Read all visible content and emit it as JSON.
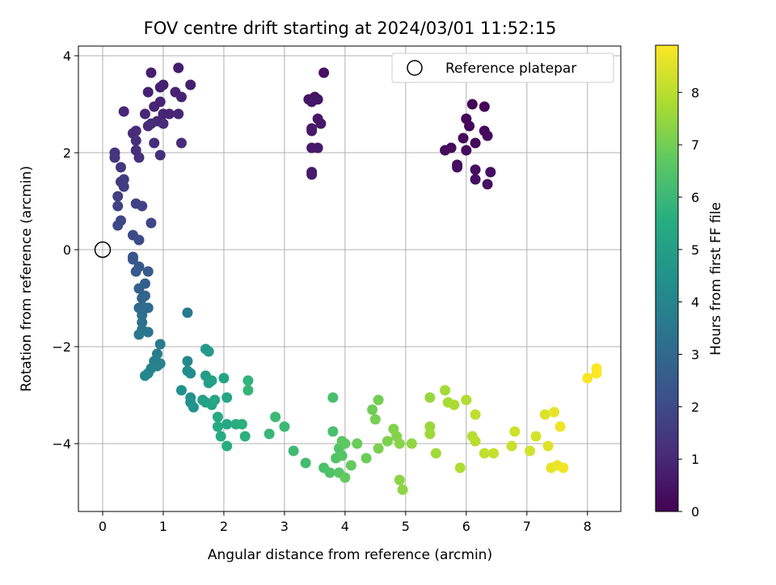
{
  "chart_data": {
    "type": "scatter",
    "title": "FOV centre drift starting at 2024/03/01 11:52:15",
    "xlabel": "Angular distance from reference (arcmin)",
    "ylabel": "Rotation from reference (arcmin)",
    "xlim": [
      -0.4,
      8.55
    ],
    "ylim": [
      -5.4,
      4.2
    ],
    "grid": true,
    "legend": {
      "placement": "upper-right",
      "entries": [
        "Reference platepar"
      ]
    },
    "colorbar": {
      "label": "Hours from first FF file",
      "range": [
        0,
        8.9
      ],
      "ticks": [
        0,
        1,
        2,
        3,
        4,
        5,
        6,
        7,
        8
      ],
      "colormap": "viridis"
    },
    "x_ticks": [
      0,
      1,
      2,
      3,
      4,
      5,
      6,
      7,
      8
    ],
    "y_ticks": [
      -4,
      -2,
      0,
      2,
      4
    ],
    "y_tick_labels": [
      "−4",
      "−2",
      "0",
      "2",
      "4"
    ],
    "reference": {
      "x": 0,
      "y": 0,
      "marker": "open-circle"
    },
    "points": [
      [
        6.1,
        3.0,
        0.1
      ],
      [
        6.3,
        2.95,
        0.12
      ],
      [
        6.0,
        2.7,
        0.14
      ],
      [
        6.05,
        2.55,
        0.16
      ],
      [
        6.3,
        2.45,
        0.18
      ],
      [
        6.35,
        2.35,
        0.2
      ],
      [
        5.95,
        2.3,
        0.22
      ],
      [
        6.15,
        2.2,
        0.24
      ],
      [
        5.75,
        2.1,
        0.26
      ],
      [
        5.65,
        2.05,
        0.28
      ],
      [
        6.0,
        2.05,
        0.3
      ],
      [
        5.85,
        1.75,
        0.32
      ],
      [
        5.85,
        1.7,
        0.34
      ],
      [
        6.15,
        1.65,
        0.36
      ],
      [
        6.4,
        1.6,
        0.38
      ],
      [
        6.15,
        1.45,
        0.4
      ],
      [
        6.35,
        1.35,
        0.42
      ],
      [
        3.65,
        3.65,
        0.45
      ],
      [
        3.5,
        3.15,
        0.47
      ],
      [
        3.4,
        3.1,
        0.49
      ],
      [
        3.55,
        3.1,
        0.51
      ],
      [
        3.45,
        3.05,
        0.53
      ],
      [
        3.55,
        2.7,
        0.55
      ],
      [
        3.6,
        2.6,
        0.57
      ],
      [
        3.45,
        2.5,
        0.59
      ],
      [
        3.45,
        2.45,
        0.61
      ],
      [
        3.45,
        2.1,
        0.63
      ],
      [
        3.55,
        2.1,
        0.65
      ],
      [
        3.45,
        1.6,
        0.67
      ],
      [
        3.45,
        1.55,
        0.69
      ],
      [
        1.25,
        3.75,
        0.72
      ],
      [
        0.8,
        3.65,
        0.75
      ],
      [
        1.45,
        3.4,
        0.78
      ],
      [
        1.0,
        3.4,
        0.8
      ],
      [
        0.95,
        3.35,
        0.82
      ],
      [
        0.75,
        3.25,
        0.84
      ],
      [
        1.2,
        3.25,
        0.86
      ],
      [
        1.3,
        3.15,
        0.88
      ],
      [
        0.95,
        3.05,
        0.9
      ],
      [
        0.85,
        2.95,
        0.92
      ],
      [
        1.0,
        2.8,
        0.94
      ],
      [
        1.1,
        2.8,
        0.96
      ],
      [
        1.25,
        2.8,
        0.98
      ],
      [
        0.7,
        2.8,
        1.0
      ],
      [
        0.35,
        2.85,
        1.02
      ],
      [
        0.9,
        2.65,
        1.04
      ],
      [
        0.8,
        2.6,
        1.06
      ],
      [
        1.0,
        2.6,
        1.08
      ],
      [
        0.75,
        2.55,
        1.1
      ],
      [
        0.5,
        2.4,
        1.12
      ],
      [
        0.55,
        2.45,
        1.14
      ],
      [
        0.85,
        2.2,
        1.16
      ],
      [
        1.3,
        2.2,
        1.18
      ],
      [
        0.55,
        2.25,
        1.2
      ],
      [
        0.55,
        2.05,
        1.22
      ],
      [
        0.95,
        1.95,
        1.24
      ],
      [
        0.6,
        1.9,
        1.26
      ],
      [
        0.2,
        2.0,
        1.35
      ],
      [
        0.2,
        1.9,
        1.4
      ],
      [
        0.3,
        1.7,
        1.45
      ],
      [
        0.35,
        1.45,
        1.5
      ],
      [
        0.3,
        1.4,
        1.55
      ],
      [
        0.35,
        1.3,
        1.6
      ],
      [
        0.25,
        1.1,
        1.65
      ],
      [
        0.55,
        0.95,
        1.7
      ],
      [
        0.25,
        0.9,
        1.75
      ],
      [
        0.65,
        0.9,
        1.8
      ],
      [
        0.3,
        0.6,
        1.85
      ],
      [
        0.8,
        0.55,
        1.9
      ],
      [
        0.25,
        0.5,
        1.95
      ],
      [
        0.5,
        0.3,
        2.0
      ],
      [
        0.6,
        0.2,
        2.05
      ],
      [
        0.5,
        -0.15,
        2.3
      ],
      [
        0.5,
        -0.2,
        2.35
      ],
      [
        0.6,
        -0.35,
        2.45
      ],
      [
        0.55,
        -0.45,
        2.5
      ],
      [
        0.75,
        -0.45,
        2.55
      ],
      [
        0.7,
        -0.7,
        2.65
      ],
      [
        0.6,
        -0.8,
        2.75
      ],
      [
        0.7,
        -0.95,
        2.85
      ],
      [
        0.65,
        -1.0,
        2.9
      ],
      [
        0.6,
        -1.2,
        3.0
      ],
      [
        0.7,
        -1.2,
        3.05
      ],
      [
        0.75,
        -1.2,
        3.1
      ],
      [
        0.65,
        -1.35,
        3.2
      ],
      [
        0.65,
        -1.5,
        3.3
      ],
      [
        0.65,
        -1.65,
        3.4
      ],
      [
        0.75,
        -1.7,
        3.45
      ],
      [
        0.6,
        -1.75,
        3.5
      ],
      [
        1.4,
        -1.3,
        3.6
      ],
      [
        0.95,
        -1.95,
        3.7
      ],
      [
        0.9,
        -2.15,
        3.75
      ],
      [
        0.85,
        -2.3,
        3.8
      ],
      [
        0.95,
        -2.35,
        3.85
      ],
      [
        0.9,
        -2.4,
        3.9
      ],
      [
        0.8,
        -2.45,
        3.95
      ],
      [
        0.75,
        -2.55,
        4.0
      ],
      [
        0.7,
        -2.6,
        4.05
      ],
      [
        1.4,
        -2.3,
        4.15
      ],
      [
        1.4,
        -2.5,
        4.25
      ],
      [
        1.45,
        -2.55,
        4.3
      ],
      [
        1.3,
        -2.9,
        4.4
      ],
      [
        1.45,
        -3.05,
        4.45
      ],
      [
        1.45,
        -3.15,
        4.5
      ],
      [
        1.5,
        -3.25,
        4.55
      ],
      [
        1.7,
        -2.05,
        4.8
      ],
      [
        1.75,
        -2.1,
        4.85
      ],
      [
        1.7,
        -2.6,
        4.9
      ],
      [
        1.75,
        -2.75,
        4.95
      ],
      [
        1.8,
        -2.7,
        5.0
      ],
      [
        1.65,
        -3.1,
        5.05
      ],
      [
        1.7,
        -3.15,
        5.1
      ],
      [
        1.8,
        -3.2,
        5.15
      ],
      [
        2.0,
        -2.65,
        5.2
      ],
      [
        2.05,
        -3.05,
        5.25
      ],
      [
        1.85,
        -3.1,
        5.3
      ],
      [
        1.9,
        -3.45,
        5.35
      ],
      [
        2.05,
        -3.6,
        5.4
      ],
      [
        1.9,
        -3.65,
        5.45
      ],
      [
        1.95,
        -3.85,
        5.5
      ],
      [
        2.05,
        -4.05,
        5.55
      ],
      [
        2.2,
        -3.6,
        5.6
      ],
      [
        2.3,
        -3.6,
        5.65
      ],
      [
        2.35,
        -3.85,
        5.7
      ],
      [
        2.4,
        -2.7,
        5.8
      ],
      [
        2.4,
        -2.9,
        5.85
      ],
      [
        2.75,
        -3.8,
        5.95
      ],
      [
        2.85,
        -3.45,
        6.0
      ],
      [
        3.0,
        -3.65,
        6.05
      ],
      [
        3.15,
        -4.15,
        6.1
      ],
      [
        3.35,
        -4.4,
        6.15
      ],
      [
        3.8,
        -3.05,
        6.25
      ],
      [
        3.8,
        -3.75,
        6.3
      ],
      [
        3.65,
        -4.5,
        6.35
      ],
      [
        3.75,
        -4.6,
        6.4
      ],
      [
        3.85,
        -4.3,
        6.45
      ],
      [
        3.9,
        -4.1,
        6.5
      ],
      [
        3.95,
        -4.25,
        6.55
      ],
      [
        3.9,
        -4.6,
        6.6
      ],
      [
        3.95,
        -3.95,
        6.65
      ],
      [
        4.0,
        -4.0,
        6.7
      ],
      [
        4.0,
        -4.7,
        6.75
      ],
      [
        4.1,
        -4.45,
        6.8
      ],
      [
        4.2,
        -4.0,
        6.85
      ],
      [
        4.35,
        -4.3,
        6.9
      ],
      [
        4.45,
        -3.3,
        6.95
      ],
      [
        4.55,
        -3.1,
        7.0
      ],
      [
        4.5,
        -3.5,
        7.05
      ],
      [
        4.55,
        -4.1,
        7.1
      ],
      [
        4.7,
        -3.95,
        7.15
      ],
      [
        4.8,
        -3.7,
        7.2
      ],
      [
        4.85,
        -3.85,
        7.25
      ],
      [
        4.9,
        -4.0,
        7.3
      ],
      [
        4.9,
        -4.75,
        7.35
      ],
      [
        4.95,
        -4.95,
        7.4
      ],
      [
        5.1,
        -4.0,
        7.45
      ],
      [
        5.4,
        -3.05,
        7.5
      ],
      [
        5.4,
        -3.65,
        7.55
      ],
      [
        5.4,
        -3.8,
        7.6
      ],
      [
        5.5,
        -4.2,
        7.65
      ],
      [
        5.65,
        -2.9,
        7.7
      ],
      [
        5.7,
        -3.15,
        7.75
      ],
      [
        5.8,
        -3.2,
        7.8
      ],
      [
        5.9,
        -4.5,
        7.85
      ],
      [
        6.0,
        -3.1,
        7.9
      ],
      [
        6.1,
        -3.85,
        7.95
      ],
      [
        6.15,
        -3.95,
        8.0
      ],
      [
        6.15,
        -3.4,
        8.05
      ],
      [
        6.3,
        -4.2,
        8.1
      ],
      [
        6.45,
        -4.2,
        8.15
      ],
      [
        6.75,
        -4.05,
        8.2
      ],
      [
        6.8,
        -3.75,
        8.25
      ],
      [
        7.05,
        -4.15,
        8.3
      ],
      [
        7.15,
        -3.85,
        8.35
      ],
      [
        7.3,
        -3.4,
        8.45
      ],
      [
        7.35,
        -4.05,
        8.5
      ],
      [
        7.4,
        -4.5,
        8.55
      ],
      [
        7.45,
        -3.35,
        8.6
      ],
      [
        7.5,
        -4.45,
        8.65
      ],
      [
        7.55,
        -3.65,
        8.7
      ],
      [
        7.6,
        -4.5,
        8.75
      ],
      [
        8.0,
        -2.65,
        8.8
      ],
      [
        8.15,
        -2.45,
        8.85
      ],
      [
        8.15,
        -2.55,
        8.9
      ]
    ]
  }
}
